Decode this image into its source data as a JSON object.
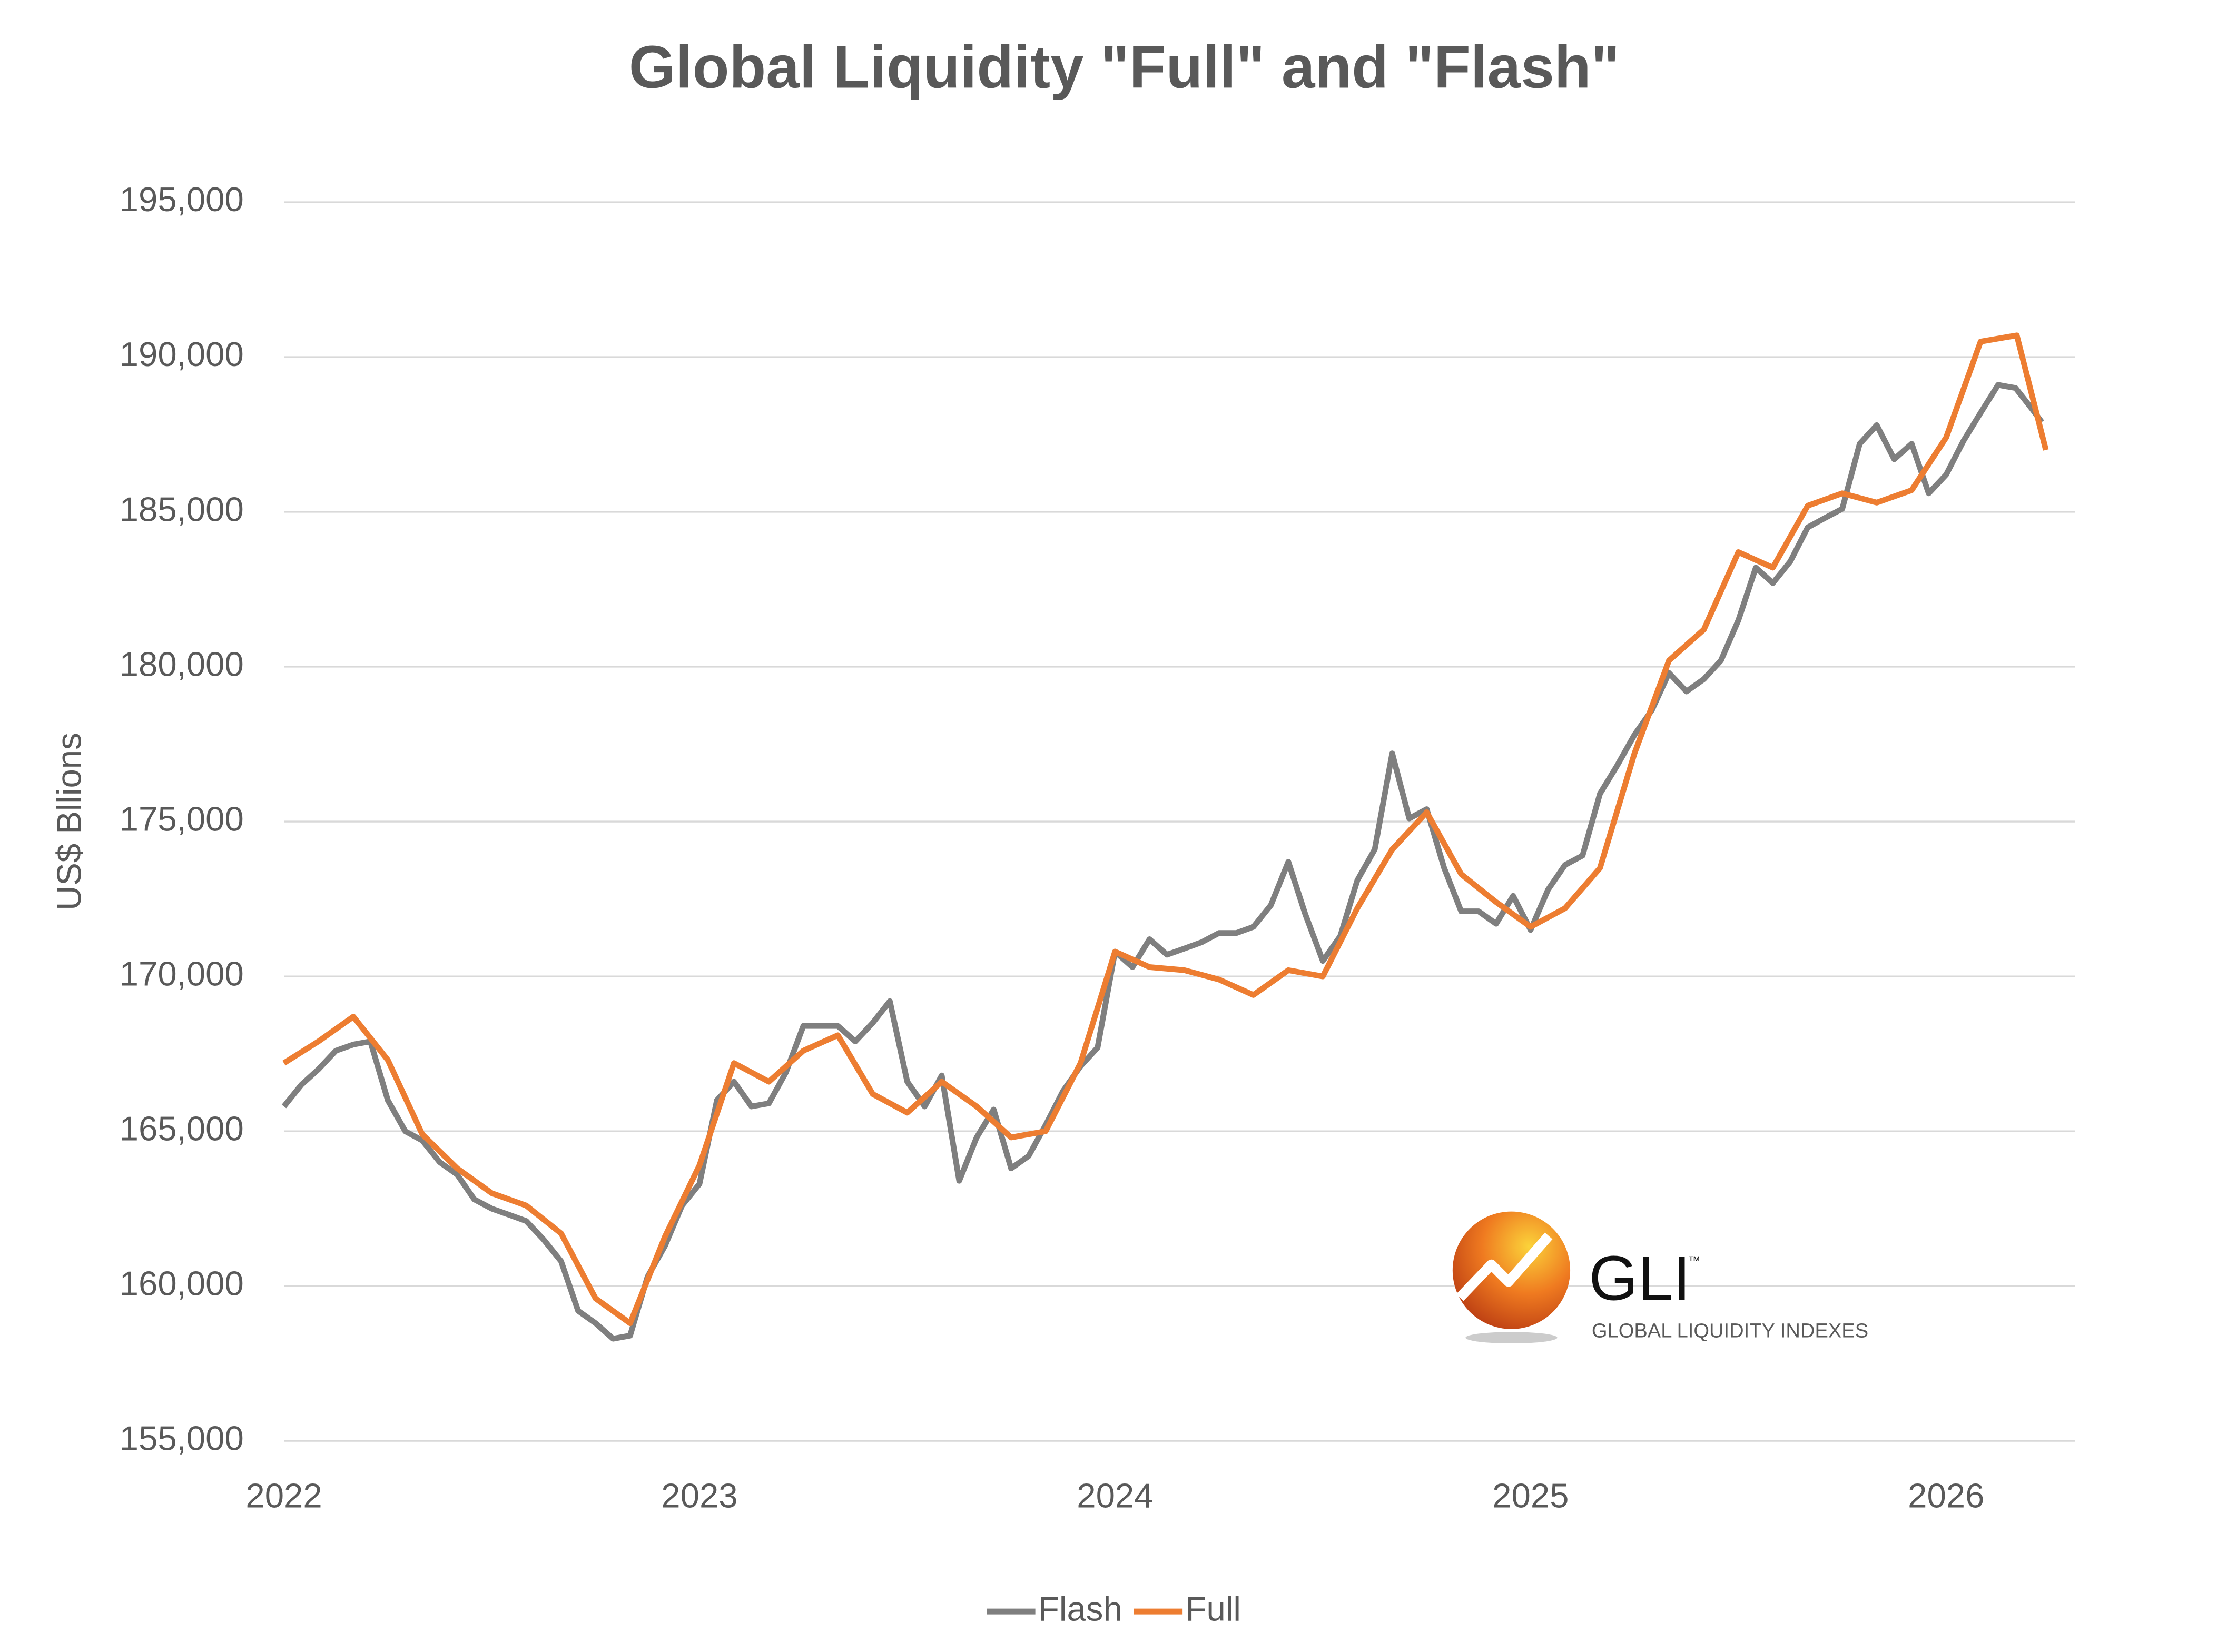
{
  "chart_data": {
    "type": "line",
    "title": "Global Liquidity \"Full\" and \"Flash\"",
    "y_label": "US$ Bllions",
    "logo": {
      "name": "GLI",
      "mark": "™",
      "tagline": "GLOBAL LIQUIDITY INDEXES"
    },
    "xlim": [
      2022,
      2026.31
    ],
    "xticks": [
      2022,
      2023,
      2024,
      2025,
      2026
    ],
    "ylim": [
      155000,
      195000
    ],
    "yticks": [
      {
        "value": 155000,
        "label": "155,000"
      },
      {
        "value": 160000,
        "label": "160,000"
      },
      {
        "value": 165000,
        "label": "165,000"
      },
      {
        "value": 170000,
        "label": "170,000"
      },
      {
        "value": 175000,
        "label": "175,000"
      },
      {
        "value": 180000,
        "label": "180,000"
      },
      {
        "value": 185000,
        "label": "185,000"
      },
      {
        "value": 190000,
        "label": "190,000"
      },
      {
        "value": 195000,
        "label": "195,000"
      }
    ],
    "grid": true,
    "legend": "bottom",
    "series": [
      {
        "name": "Flash",
        "color": "#7f7f7f",
        "x": [
          2022,
          2022.042,
          2022.083,
          2022.125,
          2022.167,
          2022.208,
          2022.25,
          2022.292,
          2022.333,
          2022.375,
          2022.417,
          2022.458,
          2022.5,
          2022.542,
          2022.583,
          2022.625,
          2022.667,
          2022.708,
          2022.75,
          2022.792,
          2022.833,
          2022.875,
          2022.917,
          2022.958,
          2023,
          2023.042,
          2023.083,
          2023.125,
          2023.167,
          2023.208,
          2023.25,
          2023.292,
          2023.333,
          2023.375,
          2023.417,
          2023.458,
          2023.5,
          2023.542,
          2023.583,
          2023.625,
          2023.667,
          2023.708,
          2023.75,
          2023.792,
          2023.833,
          2023.875,
          2023.917,
          2023.958,
          2024,
          2024.042,
          2024.083,
          2024.125,
          2024.167,
          2024.208,
          2024.25,
          2024.292,
          2024.333,
          2024.375,
          2024.417,
          2024.458,
          2024.5,
          2024.542,
          2024.583,
          2024.625,
          2024.667,
          2024.708,
          2024.75,
          2024.792,
          2024.833,
          2024.875,
          2024.917,
          2024.958,
          2025,
          2025.042,
          2025.083,
          2025.125,
          2025.167,
          2025.208,
          2025.25,
          2025.292,
          2025.333,
          2025.375,
          2025.417,
          2025.458,
          2025.5,
          2025.542,
          2025.583,
          2025.625,
          2025.667,
          2025.708,
          2025.75,
          2025.792,
          2025.833,
          2025.875,
          2025.917,
          2025.958,
          2026,
          2026.042,
          2026.083,
          2026.125,
          2026.167,
          2026.208,
          2026.23
        ],
        "values": [
          165800,
          166500,
          167000,
          167600,
          167800,
          167900,
          166000,
          165000,
          164700,
          164000,
          163600,
          162800,
          162500,
          162300,
          162100,
          161500,
          160800,
          159200,
          158800,
          158300,
          158400,
          160300,
          161300,
          162600,
          163300,
          166000,
          166600,
          165800,
          165900,
          166900,
          168400,
          168400,
          168400,
          167900,
          168500,
          169200,
          166600,
          165800,
          166800,
          163400,
          164800,
          165700,
          163800,
          164200,
          165200,
          166300,
          167100,
          167700,
          170800,
          170300,
          171200,
          170700,
          170900,
          171100,
          171400,
          171400,
          171600,
          172300,
          173700,
          172000,
          170500,
          171300,
          173100,
          174100,
          177200,
          175100,
          175400,
          173500,
          172100,
          172100,
          171700,
          172600,
          171500,
          172800,
          173600,
          173900,
          175900,
          176800,
          177800,
          178600,
          179800,
          179200,
          179600,
          180200,
          181500,
          183200,
          182700,
          183400,
          184500,
          184800,
          185100,
          187200,
          187800,
          186700,
          187200,
          185600,
          186200,
          187300,
          188200,
          189100,
          189000,
          188300,
          187900
        ]
      },
      {
        "name": "Full",
        "color": "#ed7d31",
        "x": [
          2022,
          2022.083,
          2022.167,
          2022.25,
          2022.333,
          2022.417,
          2022.5,
          2022.583,
          2022.667,
          2022.75,
          2022.833,
          2022.917,
          2023,
          2023.083,
          2023.167,
          2023.25,
          2023.333,
          2023.417,
          2023.5,
          2023.583,
          2023.667,
          2023.75,
          2023.833,
          2023.917,
          2024,
          2024.083,
          2024.167,
          2024.25,
          2024.333,
          2024.417,
          2024.5,
          2024.583,
          2024.667,
          2024.75,
          2024.833,
          2024.917,
          2025,
          2025.083,
          2025.167,
          2025.25,
          2025.333,
          2025.417,
          2025.5,
          2025.583,
          2025.667,
          2025.75,
          2025.833,
          2025.917,
          2026,
          2026.083,
          2026.17,
          2026.24
        ],
        "values": [
          167200,
          167900,
          168700,
          167300,
          164900,
          163800,
          163000,
          162600,
          161700,
          159600,
          158800,
          161600,
          163900,
          167200,
          166600,
          167600,
          168100,
          166200,
          165600,
          166600,
          165800,
          164800,
          165000,
          167200,
          170800,
          170300,
          170200,
          169900,
          169400,
          170200,
          170000,
          172200,
          174100,
          175300,
          173300,
          172400,
          171600,
          172200,
          173500,
          177200,
          180200,
          181200,
          183700,
          183200,
          185200,
          185600,
          185300,
          185700,
          187400,
          190500,
          190700,
          187000
        ]
      }
    ]
  }
}
